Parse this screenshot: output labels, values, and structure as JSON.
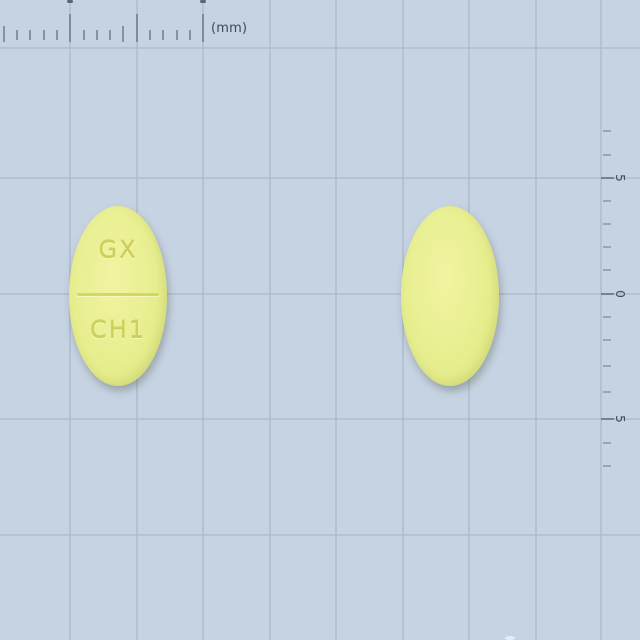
{
  "ruler": {
    "unit_label": "(mm)",
    "vertical_labels": [
      "5",
      "0",
      "5"
    ]
  },
  "tablet": {
    "color": "#e9ee92",
    "front_imprint_top": "GX",
    "front_imprint_bottom": "CH1"
  },
  "colors": {
    "background": "#c6d3e3",
    "grid_line": "#aebccd",
    "ruler_mark": "#5a6675"
  }
}
